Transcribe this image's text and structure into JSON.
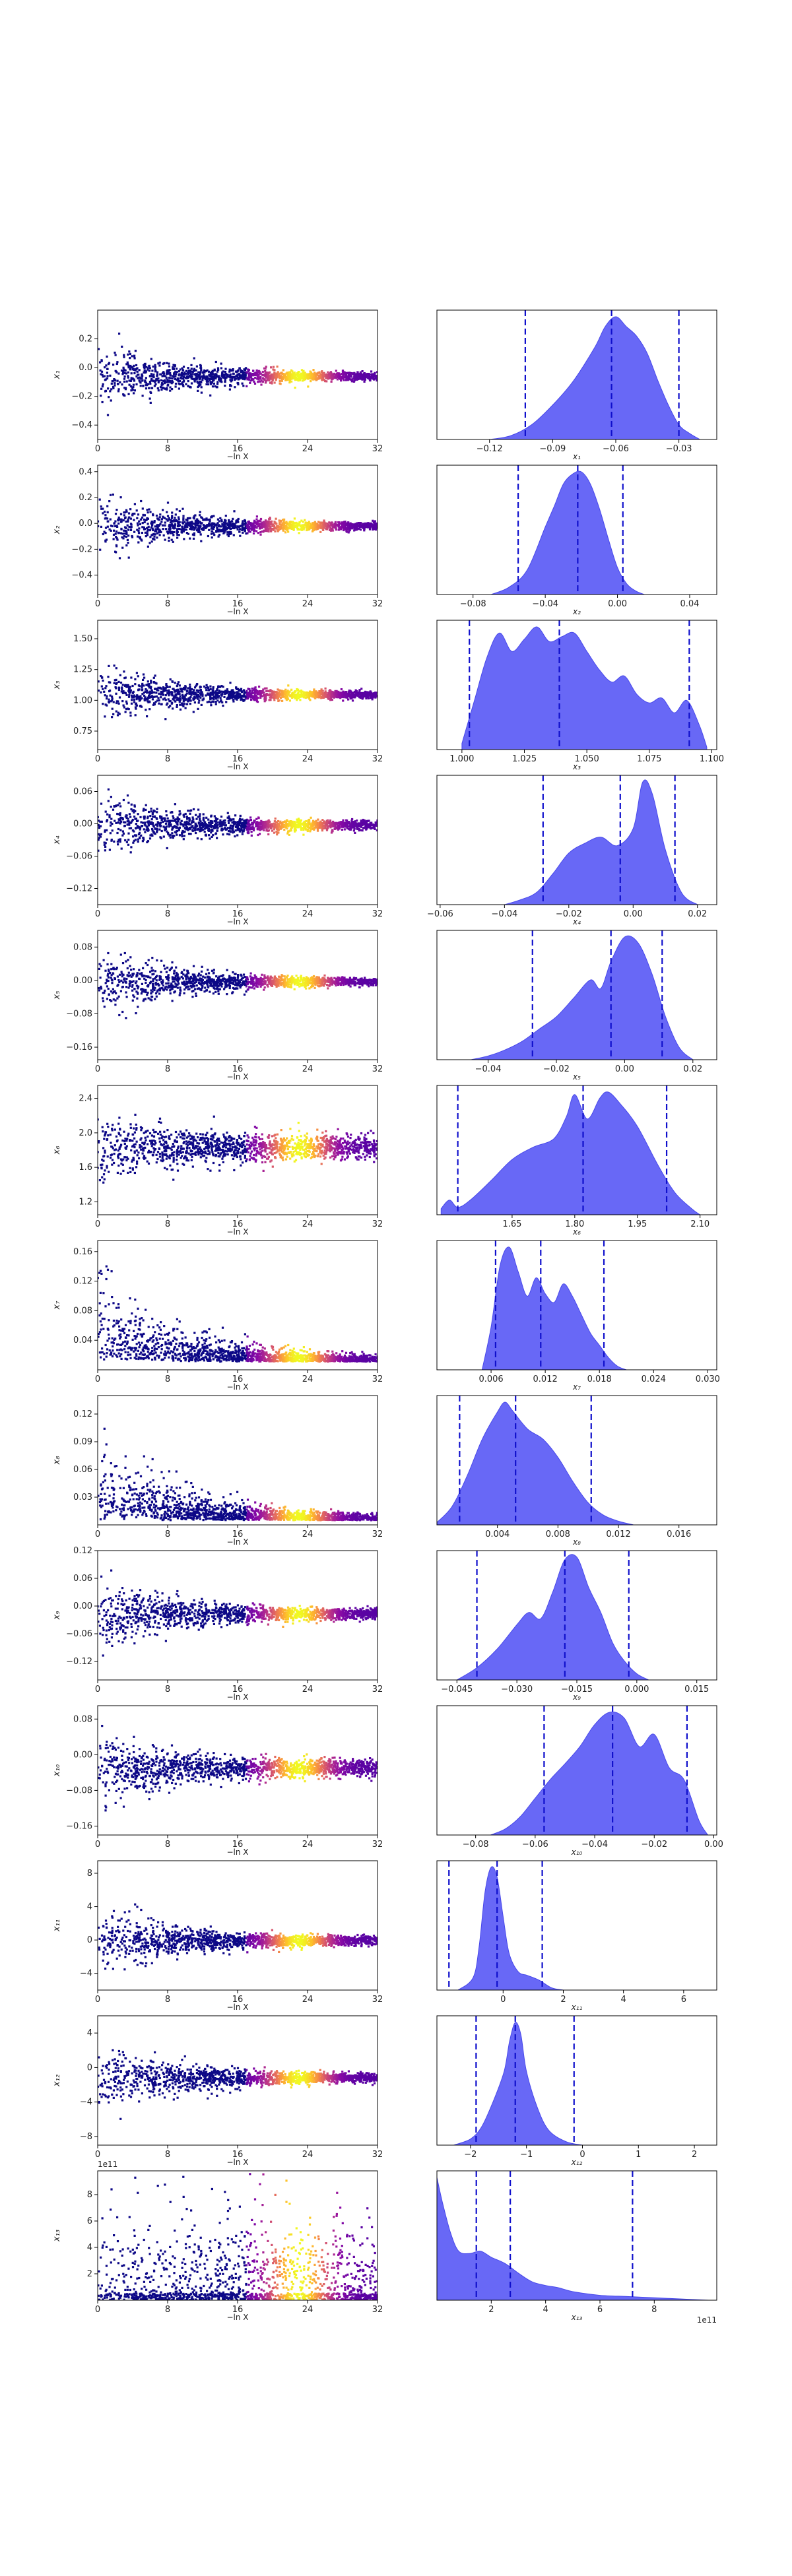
{
  "figure": {
    "shared_xlabel_left": "−ln X",
    "scale_note_row13": "1e11"
  },
  "colors": {
    "kde_fill": "#5b5bf5",
    "kde_edge": "#4848ea",
    "quantile_line": "#1010cc",
    "scatter_low": "#0d0887",
    "scatter_mid": "#9c179e",
    "scatter_high": "#f0f921"
  },
  "chart_data": [
    {
      "type": "scatter",
      "ylabel": "x₁",
      "xlabel": "−ln X",
      "xticks": [
        "0",
        "8",
        "16",
        "24",
        "32"
      ],
      "xlim": [
        0,
        32
      ],
      "yticks": [
        "−0.4",
        "−0.2",
        "0.0",
        "0.2"
      ],
      "ylim": [
        -0.5,
        0.4
      ],
      "center": -0.06,
      "spread0": 0.2,
      "width_end": 0.02
    },
    {
      "type": "area",
      "xlabel": "x₁",
      "xticks": [
        "−0.12",
        "−0.09",
        "−0.06",
        "−0.03"
      ],
      "xlim": [
        -0.145,
        -0.012
      ],
      "quantiles": [
        -0.103,
        -0.062,
        -0.03
      ],
      "density_x": [
        -0.12,
        -0.11,
        -0.1,
        -0.09,
        -0.08,
        -0.07,
        -0.065,
        -0.06,
        -0.055,
        -0.05,
        -0.045,
        -0.04,
        -0.035,
        -0.03,
        -0.025,
        -0.02
      ],
      "density_y": [
        0.0,
        0.03,
        0.12,
        0.28,
        0.48,
        0.75,
        0.92,
        1.0,
        0.92,
        0.84,
        0.7,
        0.48,
        0.28,
        0.12,
        0.05,
        0.0
      ]
    },
    {
      "type": "scatter",
      "ylabel": "x₂",
      "xlabel": "−ln X",
      "xticks": [
        "0",
        "8",
        "16",
        "24",
        "32"
      ],
      "xlim": [
        0,
        32
      ],
      "yticks": [
        "−0.4",
        "−0.2",
        "0.0",
        "0.2",
        "0.4"
      ],
      "ylim": [
        -0.55,
        0.45
      ],
      "center": -0.02,
      "spread0": 0.22,
      "width_end": 0.02
    },
    {
      "type": "area",
      "xlabel": "x₂",
      "xticks": [
        "−0.08",
        "−0.04",
        "0.00",
        "0.04"
      ],
      "xlim": [
        -0.1,
        0.055
      ],
      "quantiles": [
        -0.055,
        -0.022,
        0.003
      ],
      "density_x": [
        -0.07,
        -0.06,
        -0.05,
        -0.04,
        -0.035,
        -0.03,
        -0.025,
        -0.02,
        -0.015,
        -0.01,
        -0.005,
        0.0,
        0.005,
        0.01,
        0.015
      ],
      "density_y": [
        0.0,
        0.06,
        0.2,
        0.55,
        0.72,
        0.9,
        0.98,
        1.0,
        0.9,
        0.7,
        0.45,
        0.22,
        0.09,
        0.03,
        0.0
      ]
    },
    {
      "type": "scatter",
      "ylabel": "x₃",
      "xlabel": "−ln X",
      "xticks": [
        "0",
        "8",
        "16",
        "24",
        "32"
      ],
      "xlim": [
        0,
        32
      ],
      "yticks": [
        "0.75",
        "1.00",
        "1.25",
        "1.50"
      ],
      "ylim": [
        0.6,
        1.65
      ],
      "center": 1.045,
      "spread0": 0.22,
      "width_end": 0.02
    },
    {
      "type": "area",
      "xlabel": "x₃",
      "xticks": [
        "1.000",
        "1.025",
        "1.050",
        "1.075",
        "1.100"
      ],
      "xlim": [
        0.99,
        1.102
      ],
      "quantiles": [
        1.003,
        1.039,
        1.091
      ],
      "density_x": [
        1.0,
        1.005,
        1.01,
        1.015,
        1.02,
        1.025,
        1.03,
        1.035,
        1.04,
        1.045,
        1.05,
        1.055,
        1.06,
        1.065,
        1.07,
        1.075,
        1.08,
        1.085,
        1.09,
        1.095,
        1.098
      ],
      "density_y": [
        0.05,
        0.4,
        0.75,
        0.95,
        0.8,
        0.9,
        1.0,
        0.88,
        0.92,
        0.95,
        0.8,
        0.65,
        0.55,
        0.6,
        0.45,
        0.38,
        0.42,
        0.3,
        0.4,
        0.2,
        0.02
      ]
    },
    {
      "type": "scatter",
      "ylabel": "x₄",
      "xlabel": "−ln X",
      "xticks": [
        "0",
        "8",
        "16",
        "24",
        "32"
      ],
      "xlim": [
        0,
        32
      ],
      "yticks": [
        "−0.12",
        "−0.06",
        "0.00",
        "0.06"
      ],
      "ylim": [
        -0.15,
        0.09
      ],
      "center": -0.003,
      "spread0": 0.055,
      "width_end": 0.006
    },
    {
      "type": "area",
      "xlabel": "x₄",
      "xticks": [
        "−0.06",
        "−0.04",
        "−0.02",
        "0.00",
        "0.02"
      ],
      "xlim": [
        -0.061,
        0.026
      ],
      "quantiles": [
        -0.028,
        -0.004,
        0.013
      ],
      "density_x": [
        -0.04,
        -0.035,
        -0.03,
        -0.025,
        -0.02,
        -0.015,
        -0.01,
        -0.005,
        0.0,
        0.003,
        0.006,
        0.01,
        0.015,
        0.02
      ],
      "density_y": [
        0.0,
        0.04,
        0.1,
        0.25,
        0.42,
        0.5,
        0.55,
        0.48,
        0.62,
        1.0,
        0.9,
        0.45,
        0.1,
        0.0
      ]
    },
    {
      "type": "scatter",
      "ylabel": "x₅",
      "xlabel": "−ln X",
      "xticks": [
        "0",
        "8",
        "16",
        "24",
        "32"
      ],
      "xlim": [
        0,
        32
      ],
      "yticks": [
        "−0.16",
        "−0.08",
        "0.00",
        "0.08"
      ],
      "ylim": [
        -0.19,
        0.12
      ],
      "center": -0.003,
      "spread0": 0.07,
      "width_end": 0.006
    },
    {
      "type": "area",
      "xlabel": "x₅",
      "xticks": [
        "−0.04",
        "−0.02",
        "0.00",
        "0.02"
      ],
      "xlim": [
        -0.055,
        0.027
      ],
      "quantiles": [
        -0.027,
        -0.004,
        0.011
      ],
      "density_x": [
        -0.045,
        -0.04,
        -0.035,
        -0.03,
        -0.025,
        -0.02,
        -0.015,
        -0.01,
        -0.007,
        -0.004,
        0.0,
        0.004,
        0.008,
        0.012,
        0.016,
        0.02
      ],
      "density_y": [
        0.0,
        0.03,
        0.08,
        0.15,
        0.25,
        0.35,
        0.5,
        0.65,
        0.58,
        0.8,
        1.0,
        0.95,
        0.7,
        0.35,
        0.1,
        0.0
      ]
    },
    {
      "type": "scatter",
      "ylabel": "x₆",
      "xlabel": "−ln X",
      "xticks": [
        "0",
        "8",
        "16",
        "24",
        "32"
      ],
      "xlim": [
        0,
        32
      ],
      "yticks": [
        "1.2",
        "1.6",
        "2.0",
        "2.4"
      ],
      "ylim": [
        1.05,
        2.55
      ],
      "center": 1.83,
      "spread0": 0.35,
      "width_end": 0.12
    },
    {
      "type": "area",
      "xlabel": "x₆",
      "xticks": [
        "1.65",
        "1.80",
        "1.95",
        "2.10"
      ],
      "xlim": [
        1.47,
        2.14
      ],
      "quantiles": [
        1.52,
        1.82,
        2.02
      ],
      "density_x": [
        1.48,
        1.5,
        1.52,
        1.55,
        1.6,
        1.65,
        1.7,
        1.75,
        1.78,
        1.8,
        1.83,
        1.86,
        1.88,
        1.91,
        1.95,
        2.0,
        2.04,
        2.08,
        2.1
      ],
      "density_y": [
        0.05,
        0.12,
        0.06,
        0.12,
        0.28,
        0.45,
        0.55,
        0.62,
        0.8,
        0.98,
        0.78,
        0.95,
        1.0,
        0.9,
        0.72,
        0.4,
        0.18,
        0.05,
        0.0
      ]
    },
    {
      "type": "scatter",
      "ylabel": "x₇",
      "xlabel": "−ln X",
      "xticks": [
        "0",
        "8",
        "16",
        "24",
        "32"
      ],
      "xlim": [
        0,
        32
      ],
      "yticks": [
        "0.04",
        "0.08",
        "0.12",
        "0.16"
      ],
      "ylim": [
        0.0,
        0.175
      ],
      "center": 0.011,
      "spread0": 0.06,
      "width_end": 0.003,
      "decay": true
    },
    {
      "type": "area",
      "xlabel": "x₇",
      "xticks": [
        "0.006",
        "0.012",
        "0.018",
        "0.024",
        "0.030"
      ],
      "xlim": [
        0.0,
        0.031
      ],
      "quantiles": [
        0.0065,
        0.0115,
        0.0185
      ],
      "density_x": [
        0.005,
        0.006,
        0.007,
        0.008,
        0.009,
        0.01,
        0.011,
        0.012,
        0.013,
        0.014,
        0.015,
        0.016,
        0.017,
        0.018,
        0.019,
        0.02,
        0.021
      ],
      "density_y": [
        0.0,
        0.35,
        0.85,
        1.0,
        0.8,
        0.6,
        0.75,
        0.62,
        0.55,
        0.7,
        0.6,
        0.45,
        0.3,
        0.2,
        0.1,
        0.03,
        0.0
      ]
    },
    {
      "type": "scatter",
      "ylabel": "x₈",
      "xlabel": "−ln X",
      "xticks": [
        "0",
        "8",
        "16",
        "24",
        "32"
      ],
      "xlim": [
        0,
        32
      ],
      "yticks": [
        "0.03",
        "0.06",
        "0.09",
        "0.12"
      ],
      "ylim": [
        0.0,
        0.14
      ],
      "center": 0.005,
      "spread0": 0.05,
      "width_end": 0.002,
      "decay": true
    },
    {
      "type": "area",
      "xlabel": "x₈",
      "xticks": [
        "0.004",
        "0.008",
        "0.012",
        "0.016"
      ],
      "xlim": [
        0.0,
        0.0185
      ],
      "quantiles": [
        0.0015,
        0.0052,
        0.0102
      ],
      "density_x": [
        0.0,
        0.001,
        0.002,
        0.003,
        0.004,
        0.0045,
        0.005,
        0.006,
        0.007,
        0.008,
        0.009,
        0.01,
        0.011,
        0.012,
        0.013
      ],
      "density_y": [
        0.02,
        0.15,
        0.4,
        0.7,
        0.92,
        1.0,
        0.93,
        0.78,
        0.7,
        0.55,
        0.35,
        0.18,
        0.08,
        0.03,
        0.0
      ]
    },
    {
      "type": "scatter",
      "ylabel": "x₉",
      "xlabel": "−ln X",
      "xticks": [
        "0",
        "8",
        "16",
        "24",
        "32"
      ],
      "xlim": [
        0,
        32
      ],
      "yticks": [
        "−0.12",
        "−0.06",
        "0.00",
        "0.06",
        "0.12"
      ],
      "ylim": [
        -0.16,
        0.12
      ],
      "center": -0.017,
      "spread0": 0.07,
      "width_end": 0.008
    },
    {
      "type": "area",
      "xlabel": "x₉",
      "xticks": [
        "−0.045",
        "−0.030",
        "−0.015",
        "0.000",
        "0.015"
      ],
      "xlim": [
        -0.05,
        0.02
      ],
      "quantiles": [
        -0.04,
        -0.018,
        -0.002
      ],
      "density_x": [
        -0.045,
        -0.04,
        -0.035,
        -0.03,
        -0.027,
        -0.024,
        -0.021,
        -0.018,
        -0.015,
        -0.012,
        -0.009,
        -0.006,
        -0.003,
        0.0,
        0.003
      ],
      "density_y": [
        0.0,
        0.1,
        0.25,
        0.45,
        0.55,
        0.5,
        0.72,
        0.98,
        1.0,
        0.75,
        0.55,
        0.3,
        0.15,
        0.05,
        0.0
      ]
    },
    {
      "type": "scatter",
      "ylabel": "x₁₀",
      "xlabel": "−ln X",
      "xticks": [
        "0",
        "8",
        "16",
        "24",
        "32"
      ],
      "xlim": [
        0,
        32
      ],
      "yticks": [
        "−0.16",
        "−0.08",
        "0.00",
        "0.08"
      ],
      "ylim": [
        -0.18,
        0.11
      ],
      "center": -0.03,
      "spread0": 0.07,
      "width_end": 0.015
    },
    {
      "type": "area",
      "xlabel": "x₁₀",
      "xticks": [
        "−0.08",
        "−0.06",
        "−0.04",
        "−0.02",
        "0.00"
      ],
      "xlim": [
        -0.093,
        0.001
      ],
      "quantiles": [
        -0.057,
        -0.034,
        -0.009
      ],
      "density_x": [
        -0.075,
        -0.07,
        -0.065,
        -0.06,
        -0.055,
        -0.05,
        -0.045,
        -0.04,
        -0.035,
        -0.03,
        -0.025,
        -0.02,
        -0.015,
        -0.01,
        -0.005,
        -0.002
      ],
      "density_y": [
        0.0,
        0.05,
        0.15,
        0.3,
        0.45,
        0.58,
        0.72,
        0.9,
        1.0,
        0.95,
        0.72,
        0.82,
        0.55,
        0.45,
        0.12,
        0.0
      ]
    },
    {
      "type": "scatter",
      "ylabel": "x₁₁",
      "xlabel": "−ln X",
      "xticks": [
        "0",
        "8",
        "16",
        "24",
        "32"
      ],
      "xlim": [
        0,
        32
      ],
      "yticks": [
        "−4",
        "0",
        "4",
        "8"
      ],
      "ylim": [
        -6,
        9.5
      ],
      "center": -0.1,
      "spread0": 3.5,
      "width_end": 0.4
    },
    {
      "type": "area",
      "xlabel": "x₁₁",
      "xticks": [
        "0",
        "2",
        "4",
        "6"
      ],
      "xlim": [
        -2.2,
        7.1
      ],
      "quantiles": [
        -1.8,
        -0.2,
        1.3
      ],
      "density_x": [
        -1.5,
        -1.0,
        -0.8,
        -0.6,
        -0.4,
        -0.2,
        0.0,
        0.2,
        0.5,
        0.8,
        1.2,
        1.6,
        2.0
      ],
      "density_y": [
        0.0,
        0.1,
        0.35,
        0.8,
        1.0,
        0.92,
        0.6,
        0.3,
        0.15,
        0.12,
        0.08,
        0.02,
        0.0
      ]
    },
    {
      "type": "scatter",
      "ylabel": "x₁₂",
      "xlabel": "−ln X",
      "xticks": [
        "0",
        "8",
        "16",
        "24",
        "32"
      ],
      "xlim": [
        0,
        32
      ],
      "yticks": [
        "−8",
        "−4",
        "0",
        "4"
      ],
      "ylim": [
        -9,
        6
      ],
      "center": -1.2,
      "spread0": 3.5,
      "width_end": 0.4
    },
    {
      "type": "area",
      "xlabel": "x₁₂",
      "xticks": [
        "−2",
        "−1",
        "0",
        "1",
        "2"
      ],
      "xlim": [
        -2.6,
        2.4
      ],
      "quantiles": [
        -1.9,
        -1.2,
        -0.15
      ],
      "density_x": [
        -2.3,
        -2.0,
        -1.8,
        -1.6,
        -1.4,
        -1.3,
        -1.2,
        -1.1,
        -1.0,
        -0.8,
        -0.6,
        -0.3,
        0.0
      ],
      "density_y": [
        0.0,
        0.05,
        0.15,
        0.35,
        0.6,
        0.85,
        1.0,
        0.9,
        0.6,
        0.3,
        0.12,
        0.03,
        0.0
      ]
    },
    {
      "type": "scatter",
      "ylabel": "x₁₃",
      "xlabel": "−ln X",
      "xticks": [
        "0",
        "8",
        "16",
        "24",
        "32"
      ],
      "xlim": [
        0,
        32
      ],
      "yticks": [
        "2",
        "4",
        "6",
        "8"
      ],
      "ylim": [
        0,
        9.8
      ],
      "offset_label": "1e11",
      "center": 0.6,
      "spread0": 3.0,
      "width_end": 2.5,
      "positive": true
    },
    {
      "type": "area",
      "xlabel": "x₁₃",
      "xticks": [
        "2",
        "4",
        "6",
        "8"
      ],
      "xlim": [
        0,
        10.3
      ],
      "offset_label": "1e11",
      "quantiles": [
        1.45,
        2.7,
        7.2
      ],
      "density_x": [
        0.0,
        0.2,
        0.5,
        0.8,
        1.2,
        1.6,
        2.0,
        2.5,
        3.0,
        3.5,
        4.0,
        4.5,
        5.0,
        6.0,
        7.0,
        8.0,
        9.0,
        10.0
      ],
      "density_y": [
        1.0,
        0.8,
        0.55,
        0.4,
        0.38,
        0.4,
        0.35,
        0.3,
        0.22,
        0.15,
        0.12,
        0.1,
        0.07,
        0.04,
        0.03,
        0.02,
        0.01,
        0.0
      ]
    }
  ]
}
